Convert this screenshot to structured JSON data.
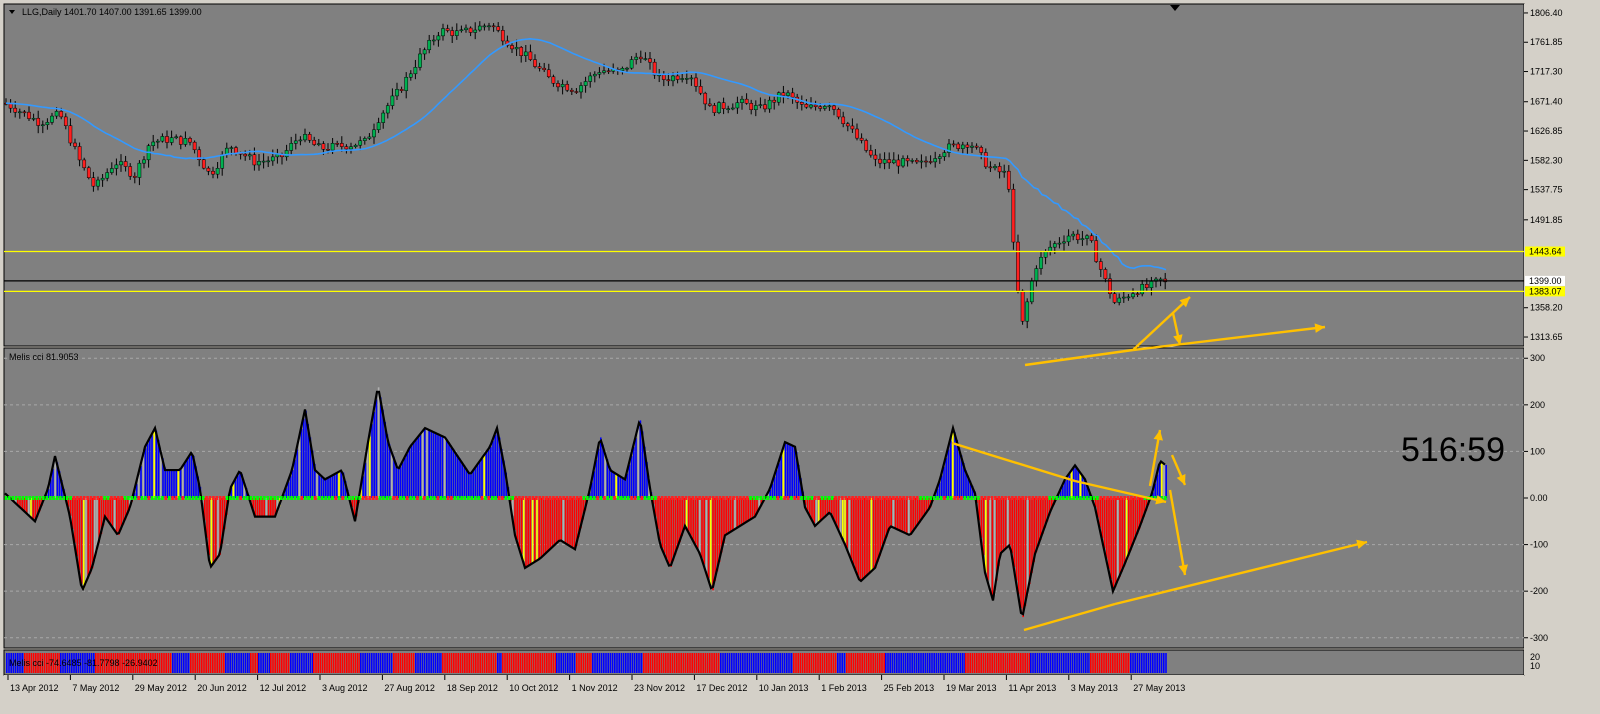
{
  "price_panel": {
    "title": "LLG,Daily  1401.70 1407.00 1391.65 1399.00",
    "y_ticks": [
      "1806.40",
      "1761.85",
      "1717.30",
      "1671.40",
      "1626.85",
      "1582.30",
      "1537.75",
      "1491.85",
      "1358.20",
      "1313.65"
    ],
    "levels": [
      {
        "label": "1443.64",
        "value": 1443.64,
        "color": "#ffff00"
      },
      {
        "label": "1383.07",
        "value": 1383.07,
        "color": "#ffff00"
      },
      {
        "label": "1399.00",
        "value": 1399.0,
        "color": "#000000"
      }
    ]
  },
  "cci_panel": {
    "title": "Melis cci 81.9053",
    "y_ticks": [
      "300",
      "200",
      "100",
      "0.00",
      "-100",
      "-200",
      "-300"
    ],
    "timer": "516:59"
  },
  "strip_panel": {
    "title": "Melis cci -74.6485 -81.7798 -26.9402",
    "y_ticks": [
      "20",
      "10"
    ]
  },
  "x_axis": {
    "labels": [
      "13 Apr 2012",
      "7 May 2012",
      "29 May 2012",
      "20 Jun 2012",
      "12 Jul 2012",
      "3 Aug 2012",
      "27 Aug 2012",
      "18 Sep 2012",
      "10 Oct 2012",
      "1 Nov 2012",
      "23 Nov 2012",
      "17 Dec 2012",
      "10 Jan 2013",
      "1 Feb 2013",
      "25 Feb 2013",
      "19 Mar 2013",
      "11 Apr 2013",
      "3 May 2013",
      "27 May 2013"
    ]
  },
  "colors": {
    "background": "#808080",
    "bull": "#00b050",
    "bear": "#ff2020",
    "ma": "#3399ff",
    "hist_up": "#0000ff",
    "hist_down": "#ff0000",
    "annotation": "#ffc000"
  }
}
